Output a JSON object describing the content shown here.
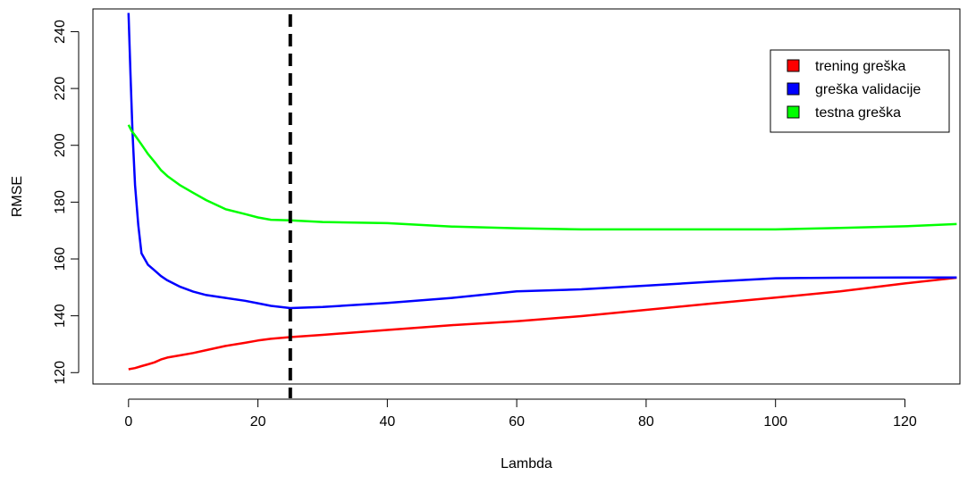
{
  "chart_data": {
    "type": "line",
    "title": "",
    "xlabel": "Lambda",
    "ylabel": "RMSE",
    "xlim": [
      -5.5,
      128.5
    ],
    "ylim": [
      116,
      248
    ],
    "x_ticks": [
      0,
      20,
      40,
      60,
      80,
      100,
      120
    ],
    "y_ticks": [
      120,
      140,
      160,
      180,
      200,
      220,
      240
    ],
    "x_tick_labels": [
      "0",
      "20",
      "40",
      "60",
      "80",
      "100",
      "120"
    ],
    "y_tick_labels": [
      "120",
      "140",
      "160",
      "180",
      "200",
      "220",
      "240"
    ],
    "grid": false,
    "legend_position": "top-right",
    "vline": {
      "x": 25,
      "style": "dashed",
      "color": "#000000"
    },
    "series": [
      {
        "name": "trening greška",
        "color": "#ff0000",
        "x": [
          0,
          1,
          2,
          3,
          4,
          5,
          6,
          8,
          10,
          12,
          15,
          18,
          20,
          22,
          25,
          30,
          40,
          50,
          60,
          70,
          80,
          90,
          100,
          110,
          120,
          128
        ],
        "y": [
          121.2,
          121.6,
          122.3,
          122.9,
          123.6,
          124.6,
          125.3,
          126.1,
          126.9,
          127.9,
          129.4,
          130.5,
          131.3,
          131.9,
          132.5,
          133.3,
          135.0,
          136.7,
          138.1,
          139.9,
          142.1,
          144.3,
          146.4,
          148.6,
          151.4,
          153.4
        ]
      },
      {
        "name": "greška validacije",
        "color": "#0000ff",
        "x": [
          0,
          0.3,
          0.6,
          1,
          1.5,
          2,
          3,
          4,
          5,
          6,
          8,
          10,
          12,
          15,
          18,
          20,
          22,
          25,
          30,
          40,
          50,
          60,
          70,
          80,
          90,
          100,
          110,
          120,
          128
        ],
        "y": [
          246.6,
          225,
          205,
          186,
          172,
          162,
          158,
          156,
          154,
          152.5,
          150.2,
          148.5,
          147.3,
          146.3,
          145.3,
          144.4,
          143.5,
          142.7,
          143.1,
          144.5,
          146.3,
          148.6,
          149.3,
          150.6,
          152,
          153.2,
          153.4,
          153.5,
          153.5
        ]
      },
      {
        "name": "testna greška",
        "color": "#00ff00",
        "x": [
          0,
          0.5,
          1,
          2,
          3,
          4,
          5,
          6,
          8,
          10,
          12,
          15,
          18,
          20,
          22,
          25,
          30,
          40,
          50,
          60,
          70,
          80,
          90,
          100,
          110,
          120,
          128
        ],
        "y": [
          207.2,
          205,
          203.5,
          200.3,
          197,
          194.2,
          191.3,
          189.2,
          185.9,
          183.3,
          180.7,
          177.5,
          175.8,
          174.6,
          173.8,
          173.6,
          173,
          172.6,
          171.4,
          170.8,
          170.4,
          170.4,
          170.4,
          170.4,
          170.9,
          171.5,
          172.3
        ]
      }
    ]
  }
}
